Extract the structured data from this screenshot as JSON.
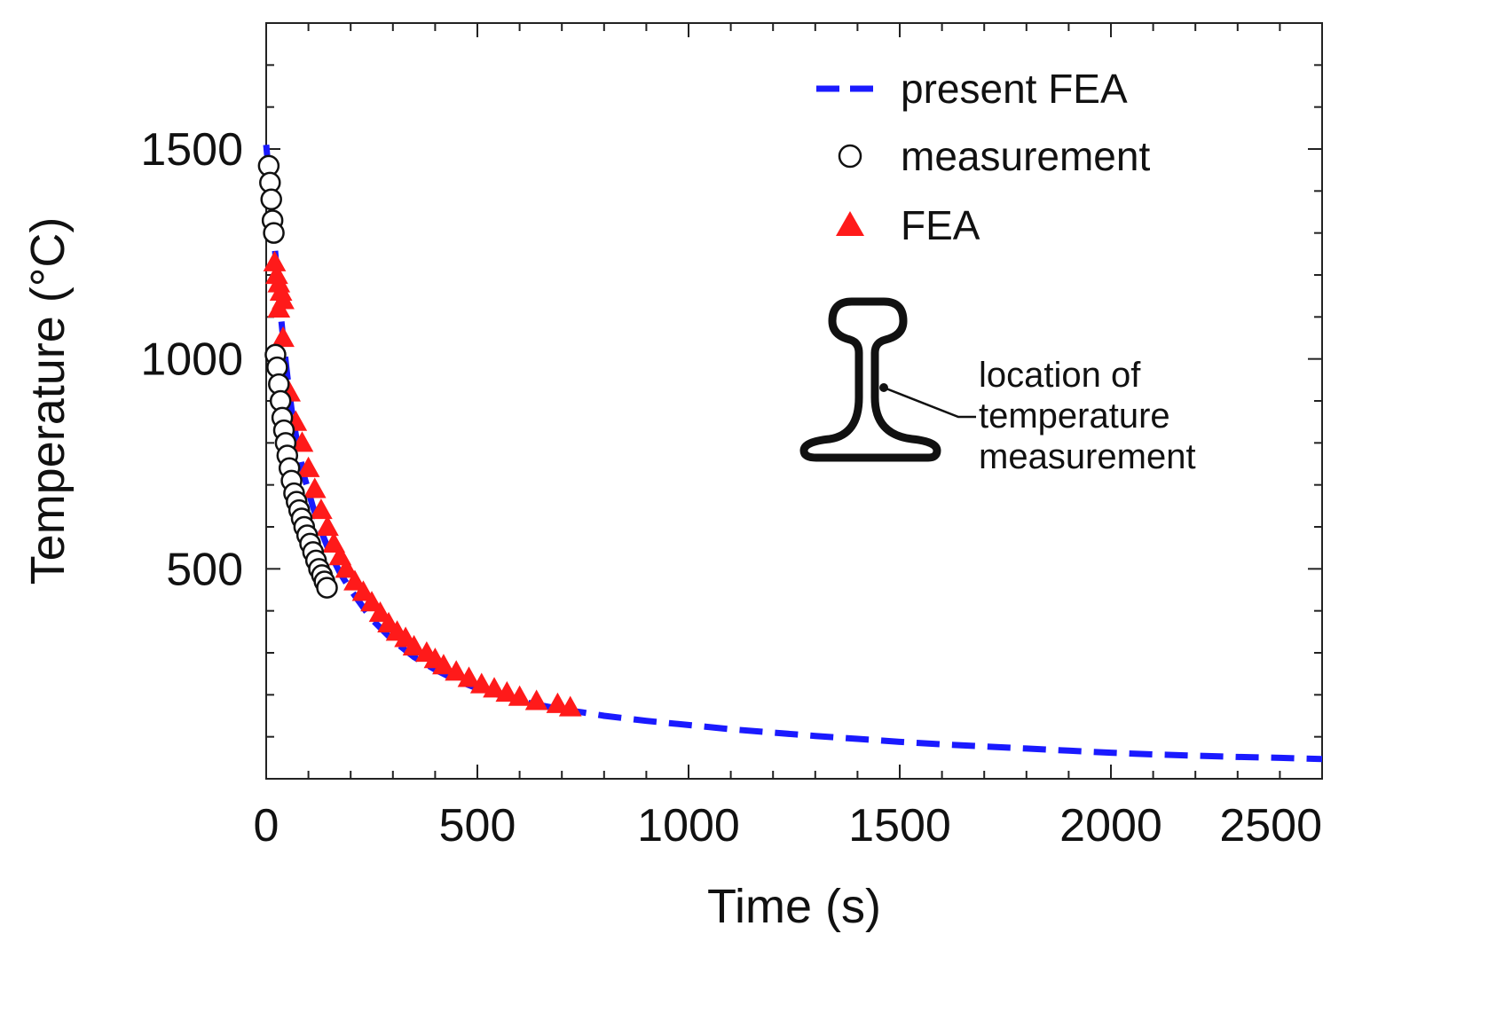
{
  "chart_data": {
    "type": "scatter",
    "title": "",
    "xlabel": "Time (s)",
    "ylabel": "Temperature (°C)",
    "xlim": [
      0,
      2500
    ],
    "ylim": [
      0,
      1800
    ],
    "xticks": [
      0,
      500,
      1000,
      1500,
      2000,
      2500
    ],
    "yticks": [
      500,
      1000,
      1500
    ],
    "grid": false,
    "legend": "top-right",
    "series": [
      {
        "name": "present FEA",
        "kind": "line",
        "style": "dashed",
        "color": "#1a1aff",
        "x": [
          0,
          10,
          20,
          30,
          40,
          50,
          60,
          75,
          90,
          110,
          130,
          150,
          175,
          200,
          250,
          300,
          350,
          400,
          450,
          500,
          550,
          600,
          650,
          700,
          750,
          800,
          900,
          1000,
          1100,
          1200,
          1300,
          1400,
          1500,
          1600,
          1700,
          1800,
          1900,
          2000,
          2100,
          2200,
          2300,
          2400,
          2500
        ],
        "y": [
          1510,
          1400,
          1270,
          1150,
          1050,
          960,
          880,
          790,
          720,
          650,
          590,
          540,
          490,
          450,
          380,
          330,
          290,
          260,
          235,
          215,
          200,
          185,
          175,
          165,
          158,
          150,
          138,
          128,
          118,
          110,
          102,
          95,
          88,
          82,
          77,
          72,
          67,
          62,
          58,
          55,
          52,
          50,
          47
        ]
      },
      {
        "name": "measurement",
        "kind": "scatter",
        "marker": "circle-open",
        "color": "#111111",
        "x": [
          6,
          9,
          12,
          15,
          18,
          22,
          26,
          30,
          34,
          38,
          42,
          46,
          50,
          55,
          60,
          66,
          72,
          78,
          84,
          90,
          97,
          104,
          111,
          118,
          125,
          132,
          138,
          144
        ],
        "y": [
          1460,
          1420,
          1380,
          1330,
          1300,
          1010,
          980,
          940,
          900,
          860,
          830,
          800,
          770,
          740,
          710,
          680,
          660,
          640,
          620,
          600,
          580,
          560,
          540,
          520,
          500,
          485,
          470,
          455
        ]
      },
      {
        "name": "FEA",
        "kind": "scatter",
        "marker": "triangle-filled",
        "color": "#ff1a1a",
        "x": [
          20,
          25,
          30,
          35,
          40,
          30,
          40,
          55,
          70,
          85,
          100,
          115,
          130,
          145,
          160,
          175,
          190,
          210,
          230,
          250,
          270,
          290,
          310,
          330,
          350,
          380,
          400,
          420,
          450,
          480,
          510,
          540,
          570,
          600,
          640,
          690,
          720
        ],
        "y": [
          1230,
          1200,
          1180,
          1160,
          1140,
          1120,
          1050,
          920,
          850,
          800,
          740,
          690,
          640,
          600,
          560,
          530,
          500,
          470,
          445,
          420,
          395,
          370,
          350,
          335,
          315,
          300,
          285,
          270,
          255,
          240,
          225,
          215,
          205,
          195,
          185,
          178,
          170
        ]
      }
    ],
    "legend_entries": [
      "present FEA",
      "measurement",
      "FEA"
    ],
    "annotation": {
      "lines": [
        "location of",
        "temperature",
        "measurement"
      ]
    }
  }
}
